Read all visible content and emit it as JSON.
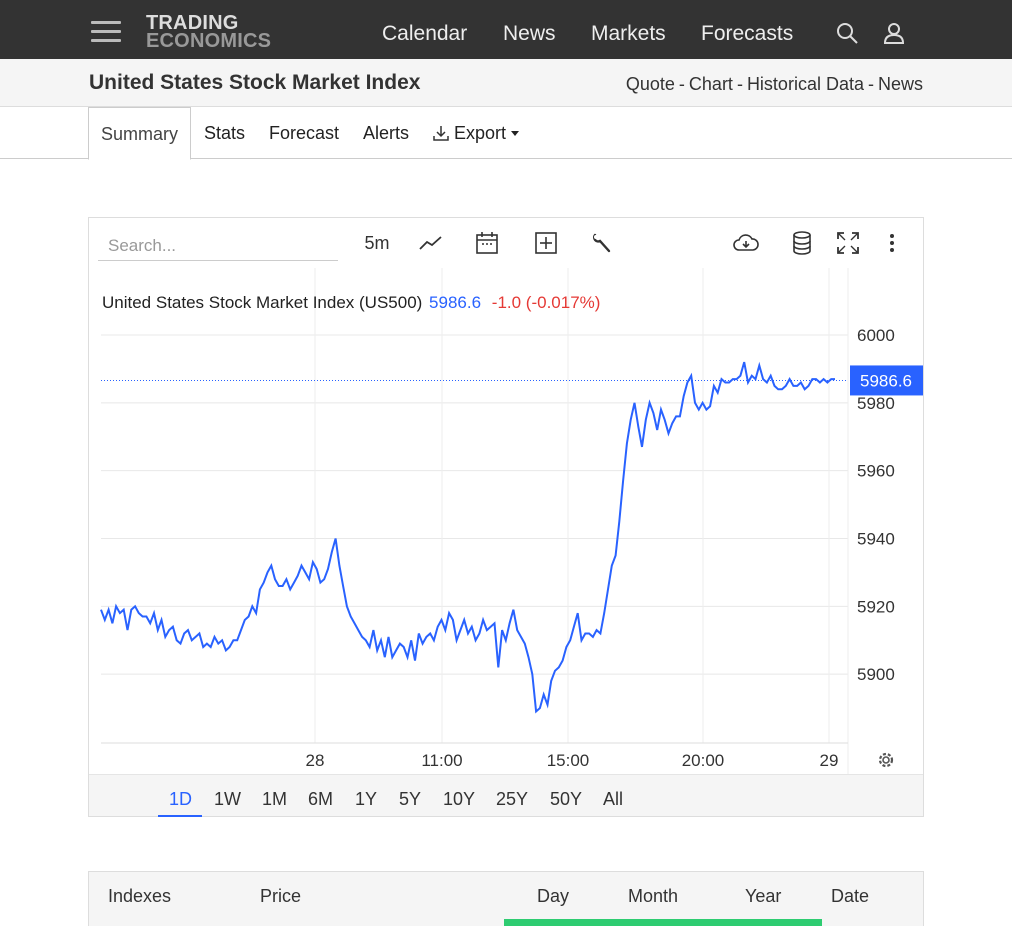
{
  "nav": {
    "logo_line1": "TRADING",
    "logo_line2": "ECONOMICS",
    "items": [
      {
        "label": "Calendar"
      },
      {
        "label": "News"
      },
      {
        "label": "Markets"
      },
      {
        "label": "Forecasts"
      }
    ],
    "icons": [
      "search-icon",
      "user-icon"
    ]
  },
  "subheader": {
    "title": "United States Stock Market Index",
    "links": [
      "Quote",
      "Chart",
      "Historical Data",
      "News"
    ],
    "separator": "-"
  },
  "tabs": [
    {
      "label": "Summary",
      "active": true
    },
    {
      "label": "Stats"
    },
    {
      "label": "Forecast"
    },
    {
      "label": "Alerts"
    },
    {
      "label": "Export"
    }
  ],
  "chart_toolbar": {
    "search_placeholder": "Search...",
    "interval": "5m",
    "icons": [
      "line-chart-icon",
      "calendar-icon",
      "add-indicator-icon",
      "wrench-icon",
      "cloud-download-icon",
      "database-icon",
      "fullscreen-icon",
      "more-icon"
    ]
  },
  "chart_legend": {
    "name": "United States Stock Market Index (US500)",
    "price": "5986.6",
    "change": "-1.0 (-0.017%)"
  },
  "colors": {
    "line": "#2962ff",
    "price": "#2962ff",
    "change": "#e53935",
    "price_tag_bg": "#2962ff",
    "nav_bg": "#333333",
    "table_strip": "#2ecc71"
  },
  "chart_data": {
    "type": "line",
    "title": "United States Stock Market Index (US500)",
    "last_price_label": "5986.6",
    "ylim": [
      5880,
      6000
    ],
    "yticks": [
      "6000",
      "5980",
      "5960",
      "5940",
      "5920",
      "5900"
    ],
    "xticks": [
      "28",
      "11:00",
      "15:00",
      "20:00",
      "29"
    ],
    "grid": true,
    "series": [
      {
        "name": "US500",
        "values": [
          5919,
          5916,
          5919,
          5915,
          5920,
          5918,
          5919,
          5913,
          5919,
          5920,
          5918,
          5917,
          5917,
          5915,
          5918,
          5913,
          5916,
          5911,
          5913,
          5914,
          5910,
          5909,
          5912,
          5913,
          5910,
          5911,
          5912,
          5908,
          5909,
          5908,
          5911,
          5909,
          5910,
          5907,
          5908,
          5910,
          5910,
          5913,
          5916,
          5917,
          5920,
          5918,
          5925,
          5927,
          5930,
          5932,
          5928,
          5926,
          5926,
          5928,
          5925,
          5927,
          5929,
          5932,
          5930,
          5928,
          5933,
          5931,
          5927,
          5928,
          5931,
          5936,
          5940,
          5932,
          5926,
          5920,
          5917,
          5915,
          5913,
          5911,
          5910,
          5908,
          5913,
          5907,
          5910,
          5905,
          5911,
          5905,
          5907,
          5909,
          5908,
          5905,
          5910,
          5904,
          5912,
          5909,
          5911,
          5912,
          5910,
          5914,
          5916,
          5913,
          5918,
          5916,
          5910,
          5913,
          5916,
          5912,
          5914,
          5910,
          5912,
          5916,
          5913,
          5914,
          5915,
          5902,
          5913,
          5910,
          5915,
          5919,
          5913,
          5911,
          5909,
          5905,
          5900,
          5889,
          5890,
          5894,
          5891,
          5898,
          5901,
          5902,
          5904,
          5908,
          5910,
          5914,
          5918,
          5910,
          5912,
          5912,
          5911,
          5913,
          5912,
          5918,
          5925,
          5932,
          5935,
          5945,
          5957,
          5968,
          5975,
          5980,
          5973,
          5967,
          5975,
          5980,
          5977,
          5972,
          5978,
          5975,
          5971,
          5974,
          5976,
          5976,
          5982,
          5986,
          5988,
          5980,
          5978,
          5980,
          5978,
          5979,
          5985,
          5983,
          5987,
          5986,
          5986,
          5987,
          5987,
          5988,
          5992,
          5986,
          5988,
          5987,
          5991,
          5987,
          5986,
          5988,
          5985,
          5984,
          5984,
          5985,
          5987,
          5985,
          5985,
          5986,
          5984,
          5985,
          5987,
          5987,
          5986,
          5987,
          5986,
          5987,
          5987
        ]
      }
    ]
  },
  "ranges": [
    "1D",
    "1W",
    "1M",
    "6M",
    "1Y",
    "5Y",
    "10Y",
    "25Y",
    "50Y",
    "All"
  ],
  "active_range": "1D",
  "table": {
    "headers": [
      "Indexes",
      "Price",
      "Day",
      "Month",
      "Year",
      "Date"
    ]
  }
}
